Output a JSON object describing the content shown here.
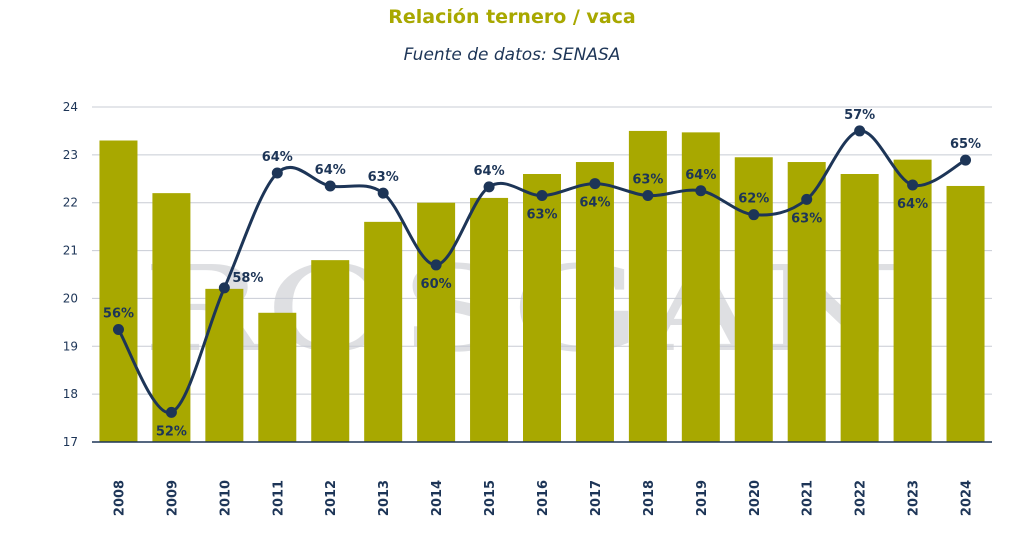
{
  "chart_data": {
    "type": "bar",
    "title": "Relación ternero / vaca",
    "subtitle": "Fuente de datos: SENASA",
    "watermark": "ROSGAN",
    "categories": [
      "2008",
      "2009",
      "2010",
      "2011",
      "2012",
      "2013",
      "2014",
      "2015",
      "2016",
      "2017",
      "2018",
      "2019",
      "2020",
      "2021",
      "2022",
      "2023",
      "2024"
    ],
    "ylim": [
      17,
      24
    ],
    "yticks": [
      17,
      18,
      19,
      20,
      21,
      22,
      23,
      24
    ],
    "grid": true,
    "series": [
      {
        "kind": "bar",
        "values": [
          23.3,
          22.2,
          20.2,
          19.7,
          20.8,
          21.6,
          22.0,
          22.1,
          22.6,
          22.85,
          23.5,
          23.47,
          22.95,
          22.85,
          22.6,
          22.9,
          22.35
        ]
      },
      {
        "kind": "line",
        "values": [
          19.35,
          17.62,
          20.22,
          22.62,
          22.35,
          22.2,
          20.7,
          22.33,
          22.15,
          22.4,
          22.15,
          22.25,
          21.75,
          22.07,
          23.5,
          22.37,
          22.89
        ],
        "labels": [
          "56%",
          "52%",
          "58%",
          "64%",
          "64%",
          "63%",
          "60%",
          "64%",
          "63%",
          "64%",
          "63%",
          "64%",
          "62%",
          "63%",
          "57%",
          "64%",
          "65%"
        ],
        "label_positions": [
          "above",
          "below",
          "right",
          "above",
          "above",
          "above",
          "below",
          "above",
          "below",
          "below",
          "above",
          "above",
          "above",
          "below",
          "above",
          "below",
          "above"
        ]
      }
    ],
    "colors": {
      "bar": "#a8a800",
      "line": "#1d3557",
      "grid": "#c8ccd4",
      "axis": "#1d3557",
      "title": "#a8a800"
    }
  }
}
